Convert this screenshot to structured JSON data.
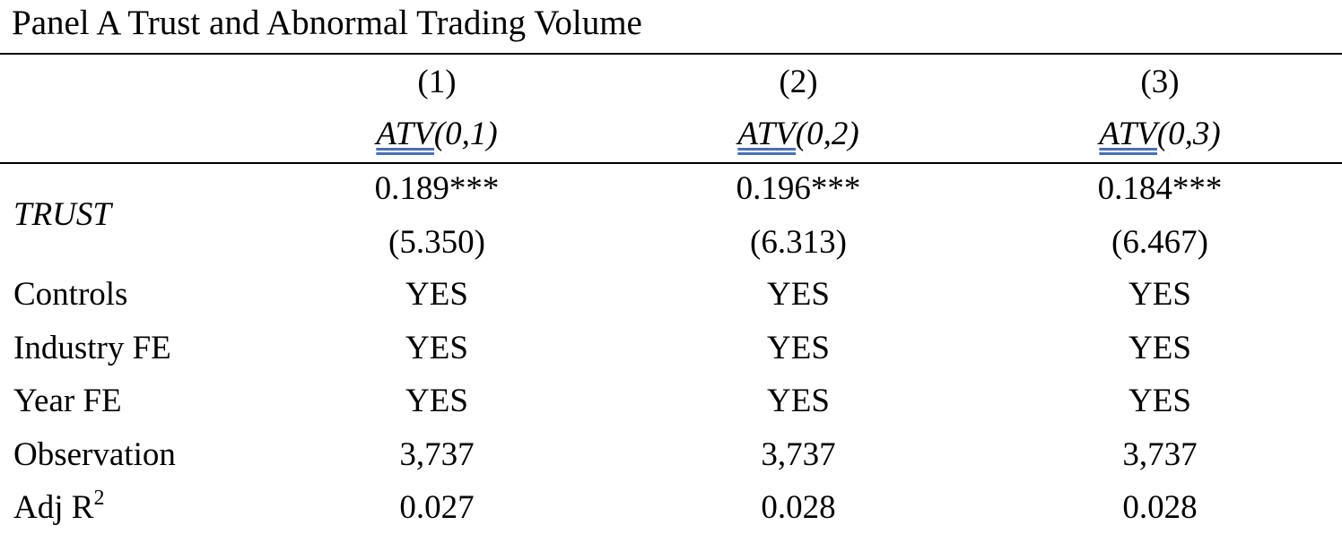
{
  "panel_title": "Panel A Trust and Abnormal Trading Volume",
  "columns": [
    {
      "number": "(1)",
      "dep_var_underlined": "ATV(",
      "dep_var_rest": "0,1)"
    },
    {
      "number": "(2)",
      "dep_var_underlined": "ATV(",
      "dep_var_rest": "0,2)"
    },
    {
      "number": "(3)",
      "dep_var_underlined": "ATV(",
      "dep_var_rest": "0,3)"
    }
  ],
  "rows": {
    "trust": {
      "label": "TRUST",
      "coefficients": [
        "0.189***",
        "0.196***",
        "0.184***"
      ],
      "t_stats": [
        "(5.350)",
        "(6.313)",
        "(6.467)"
      ]
    },
    "controls": {
      "label": "Controls",
      "values": [
        "YES",
        "YES",
        "YES"
      ]
    },
    "industry_fe": {
      "label": "Industry FE",
      "values": [
        "YES",
        "YES",
        "YES"
      ]
    },
    "year_fe": {
      "label": "Year FE",
      "values": [
        "YES",
        "YES",
        "YES"
      ]
    },
    "observation": {
      "label": "Observation",
      "values": [
        "3,737",
        "3,737",
        "3,737"
      ]
    },
    "adj_r2": {
      "label": "Adj R",
      "label_sup": "2",
      "values": [
        "0.027",
        "0.028",
        "0.028"
      ]
    }
  },
  "colors": {
    "text": "#000000",
    "underline_accent": "#4a6fb5",
    "background": "#ffffff"
  }
}
